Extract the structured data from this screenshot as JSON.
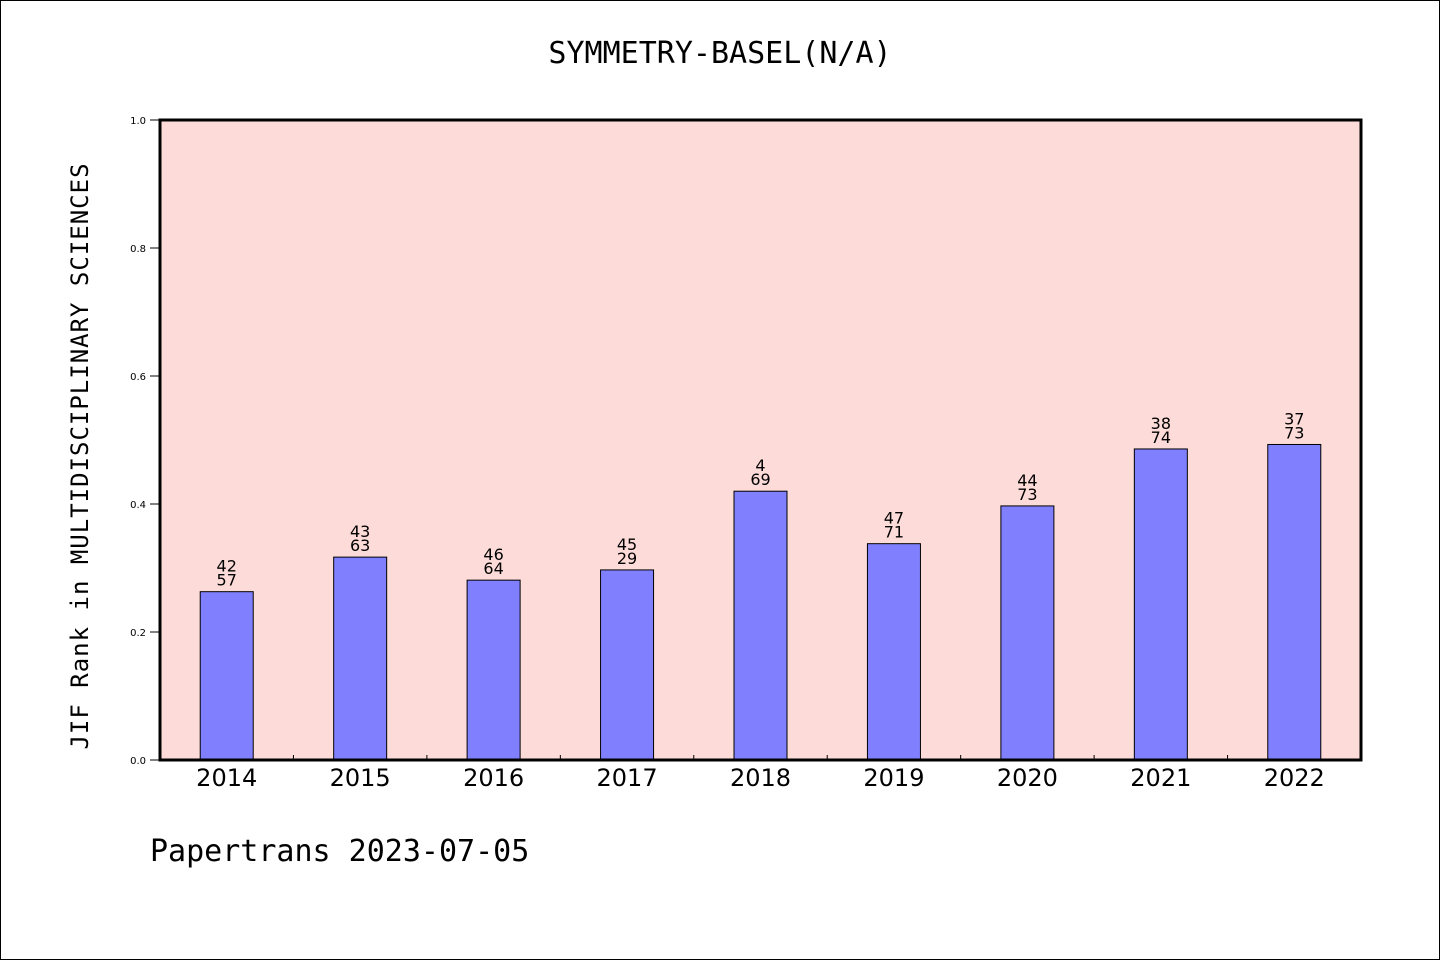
{
  "chart_data": {
    "type": "bar",
    "title": "SYMMETRY-BASEL(N/A)",
    "ylabel": "JIF Rank in MULTIDISCIPLINARY SCIENCES",
    "xlabel": "",
    "ylim": [
      0,
      1
    ],
    "yticks": [
      "0.0",
      "0.2",
      "0.4",
      "0.6",
      "0.8",
      "1.0"
    ],
    "categories": [
      "2014",
      "2015",
      "2016",
      "2017",
      "2018",
      "2019",
      "2020",
      "2021",
      "2022"
    ],
    "values": [
      0.263,
      0.317,
      0.281,
      0.297,
      0.42,
      0.338,
      0.397,
      0.486,
      0.493
    ],
    "labels_top": [
      "42",
      "43",
      "46",
      "45",
      "4",
      "47",
      "44",
      "38",
      "37"
    ],
    "labels_bottom": [
      "57",
      "63",
      "64",
      "29",
      "69",
      "71",
      "73",
      "74",
      "73"
    ],
    "colors": {
      "plot_bg": "#fddbd8",
      "bar": "#8080ff",
      "bar_edge": "#000000"
    },
    "grid": false
  },
  "footer": "Papertrans 2023-07-05"
}
